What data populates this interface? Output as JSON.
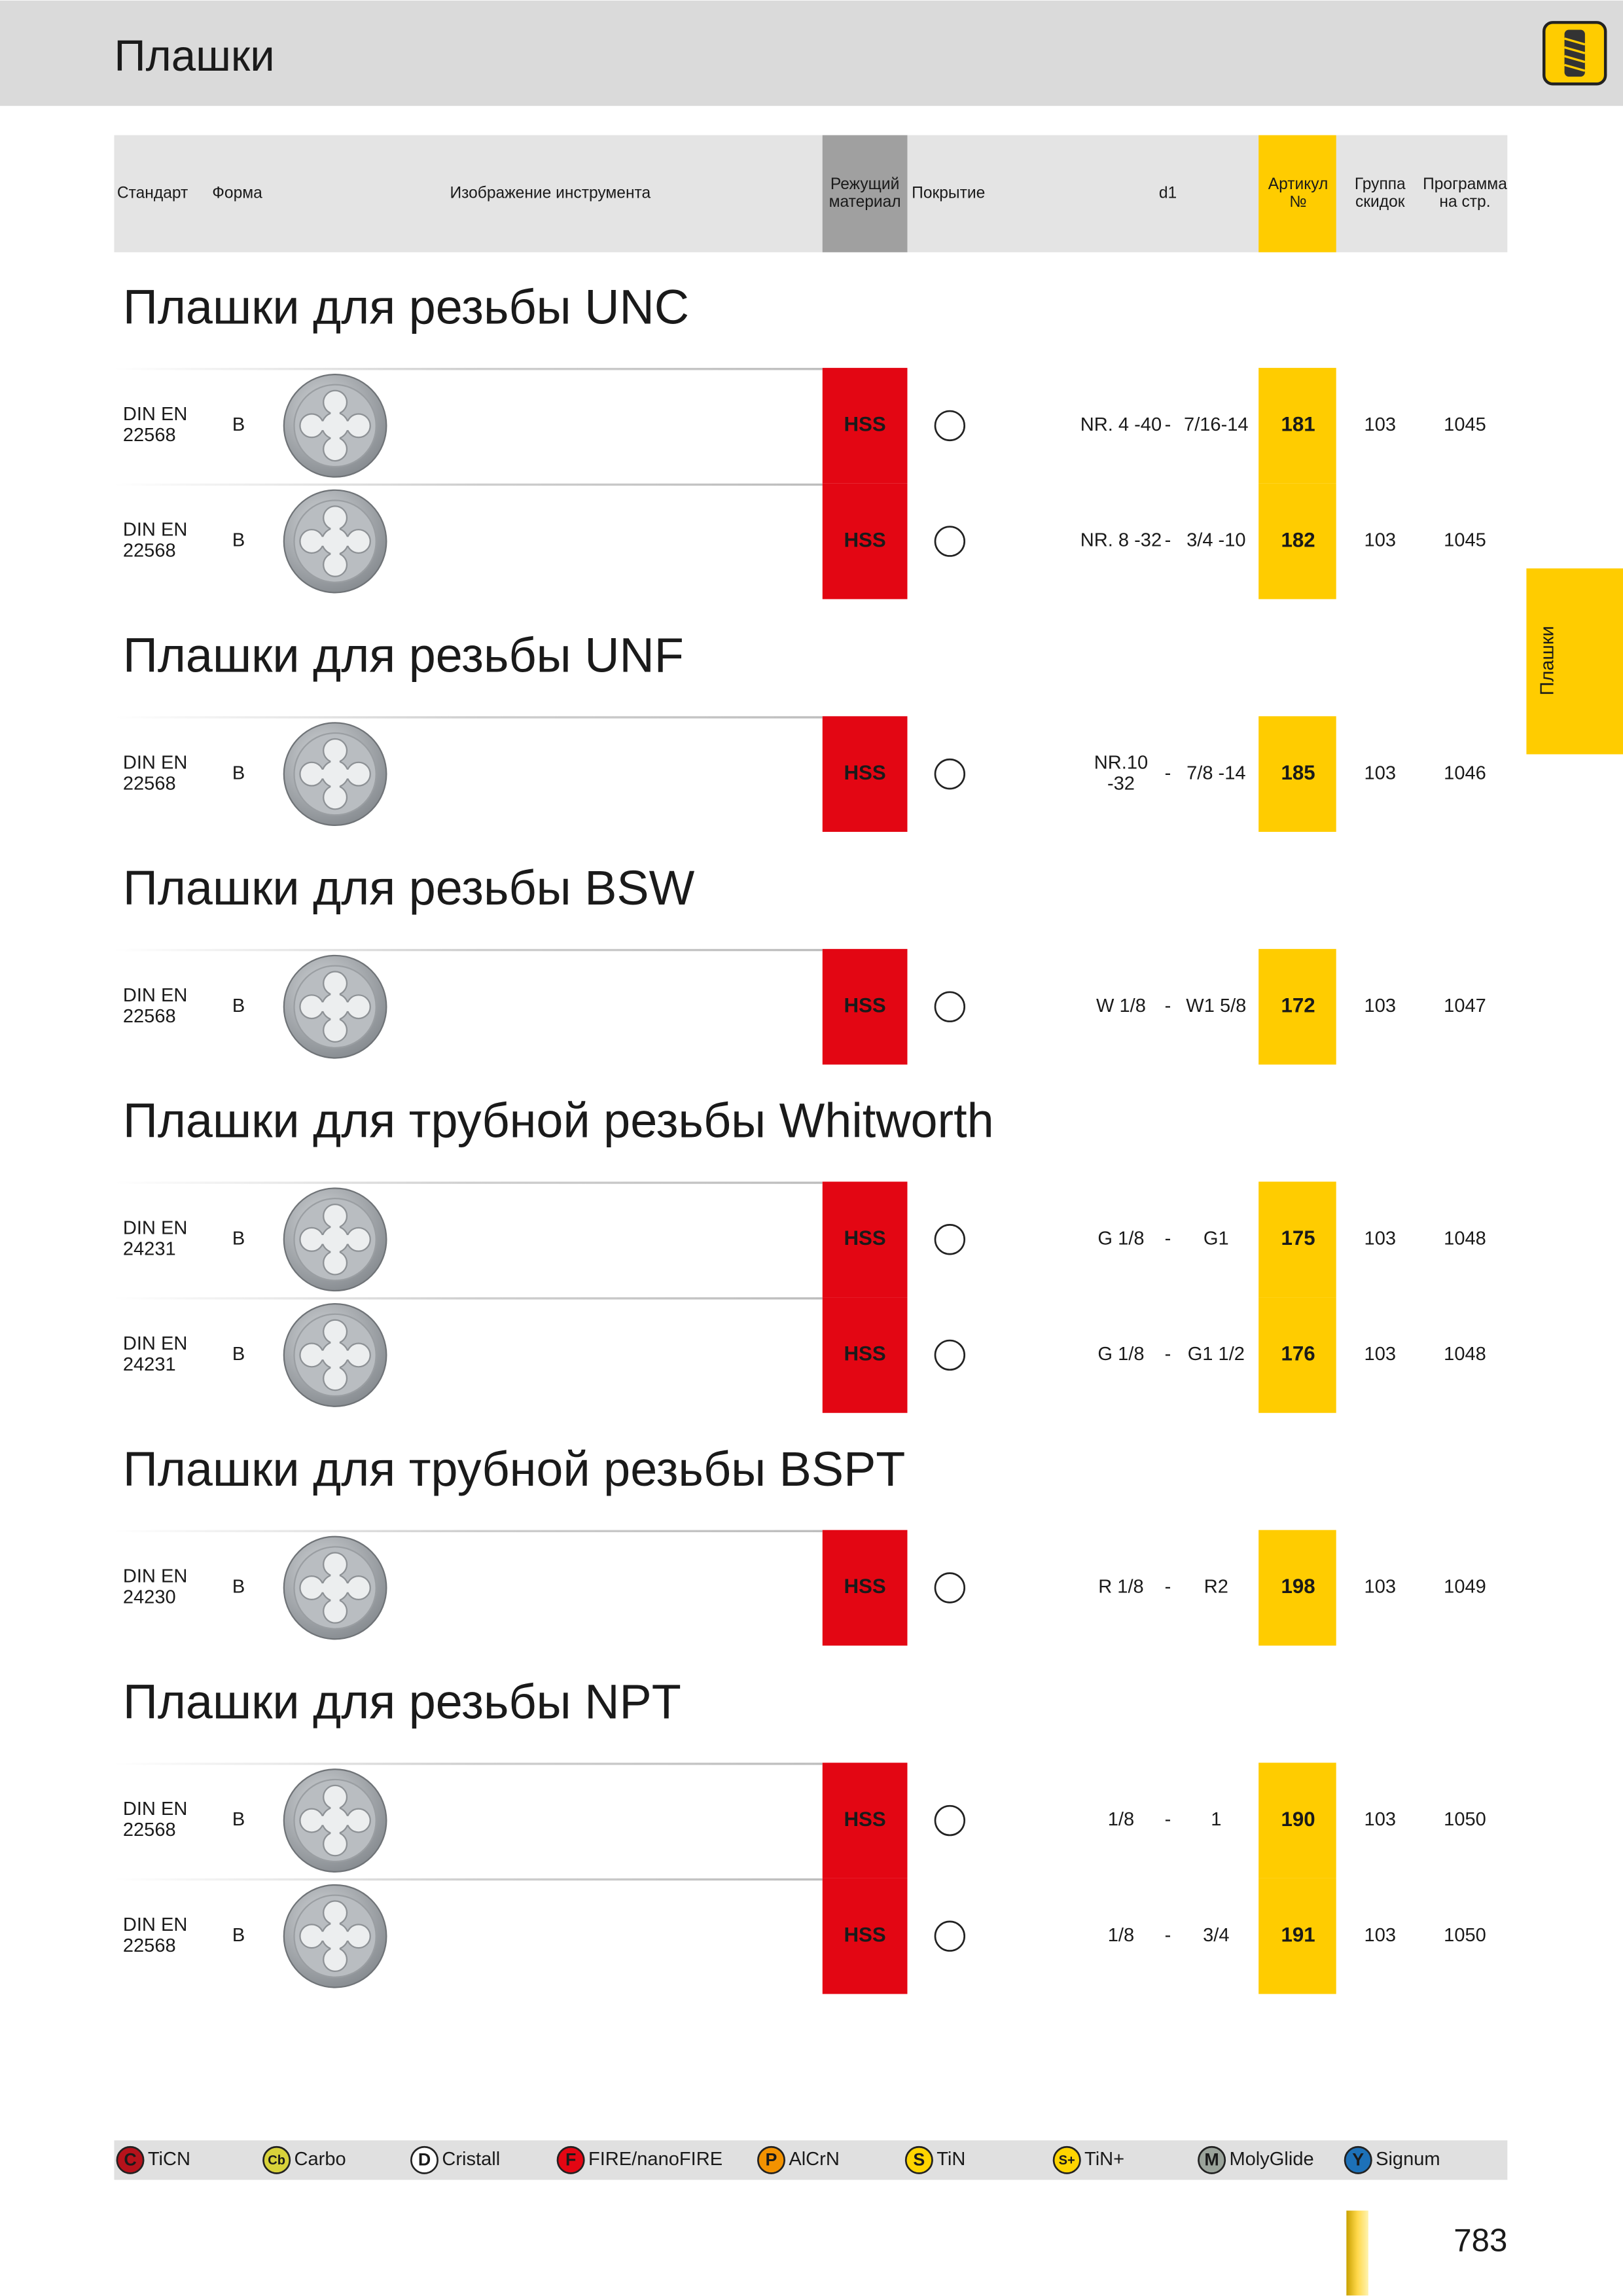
{
  "header": {
    "title": "Плашки"
  },
  "side_tab": "Плашки",
  "table_header": {
    "standard": "Стандарт",
    "form": "Форма",
    "image": "Изображение инструмента",
    "material": [
      "Режущий",
      "материал"
    ],
    "coating": "Покрытие",
    "d1": "d1",
    "article": [
      "Артикул",
      "№"
    ],
    "group": [
      "Группа",
      "скидок"
    ],
    "page": [
      "Программа",
      "на стр."
    ]
  },
  "sections": [
    {
      "title": "Плашки для резьбы UNC",
      "rows": [
        {
          "standard": [
            "DIN EN",
            "22568"
          ],
          "form": "B",
          "material": "HSS",
          "d1_from": [
            "NR. 4 -40"
          ],
          "d1_sep": "-",
          "d1_to": "7/16-14",
          "article": "181",
          "group": "103",
          "page": "1045"
        },
        {
          "standard": [
            "DIN EN",
            "22568"
          ],
          "form": "B",
          "material": "HSS",
          "d1_from": [
            "NR. 8 -32"
          ],
          "d1_sep": "-",
          "d1_to": "3/4 -10",
          "article": "182",
          "group": "103",
          "page": "1045"
        }
      ]
    },
    {
      "title": "Плашки для резьбы UNF",
      "rows": [
        {
          "standard": [
            "DIN EN",
            "22568"
          ],
          "form": "B",
          "material": "HSS",
          "d1_from": [
            "NR.10",
            "-32"
          ],
          "d1_sep": "-",
          "d1_to": "7/8 -14",
          "article": "185",
          "group": "103",
          "page": "1046"
        }
      ]
    },
    {
      "title": "Плашки для резьбы BSW",
      "rows": [
        {
          "standard": [
            "DIN EN",
            "22568"
          ],
          "form": "B",
          "material": "HSS",
          "d1_from": [
            "W 1/8"
          ],
          "d1_sep": "-",
          "d1_to": "W1 5/8",
          "article": "172",
          "group": "103",
          "page": "1047"
        }
      ]
    },
    {
      "title": "Плашки для трубной резьбы Whitworth",
      "rows": [
        {
          "standard": [
            "DIN EN",
            "24231"
          ],
          "form": "B",
          "material": "HSS",
          "d1_from": [
            "G 1/8"
          ],
          "d1_sep": "-",
          "d1_to": "G1",
          "article": "175",
          "group": "103",
          "page": "1048"
        },
        {
          "standard": [
            "DIN EN",
            "24231"
          ],
          "form": "B",
          "material": "HSS",
          "d1_from": [
            "G 1/8"
          ],
          "d1_sep": "-",
          "d1_to": "G1 1/2",
          "article": "176",
          "group": "103",
          "page": "1048"
        }
      ]
    },
    {
      "title": "Плашки для трубной резьбы BSPT",
      "rows": [
        {
          "standard": [
            "DIN EN",
            "24230"
          ],
          "form": "B",
          "material": "HSS",
          "d1_from": [
            "R 1/8"
          ],
          "d1_sep": "-",
          "d1_to": "R2",
          "article": "198",
          "group": "103",
          "page": "1049"
        }
      ]
    },
    {
      "title": "Плашки для резьбы NPT",
      "rows": [
        {
          "standard": [
            "DIN EN",
            "22568"
          ],
          "form": "B",
          "material": "HSS",
          "d1_from": [
            "1/8"
          ],
          "d1_sep": "-",
          "d1_to": "1",
          "article": "190",
          "group": "103",
          "page": "1050"
        },
        {
          "standard": [
            "DIN EN",
            "22568"
          ],
          "form": "B",
          "material": "HSS",
          "d1_from": [
            "1/8"
          ],
          "d1_sep": "-",
          "d1_to": "3/4",
          "article": "191",
          "group": "103",
          "page": "1050"
        }
      ]
    }
  ],
  "legend": [
    {
      "badge": "C",
      "name": "TiCN",
      "color": "#b5121b"
    },
    {
      "badge": "Cb",
      "name": "Carbo",
      "color": "#d8d23a"
    },
    {
      "badge": "D",
      "name": "Cristall",
      "color": "#ffffff"
    },
    {
      "badge": "F",
      "name": "FIRE/nanoFIRE",
      "color": "#e30613"
    },
    {
      "badge": "P",
      "name": "AlCrN",
      "color": "#f39200"
    },
    {
      "badge": "S",
      "name": "TiN",
      "color": "#ffd500"
    },
    {
      "badge": "S+",
      "name": "TiN+",
      "color": "#ffd500"
    },
    {
      "badge": "M",
      "name": "MolyGlide",
      "color": "#9aa39a"
    },
    {
      "badge": "Y",
      "name": "Signum",
      "color": "#1d71b8"
    }
  ],
  "page_number": "783"
}
